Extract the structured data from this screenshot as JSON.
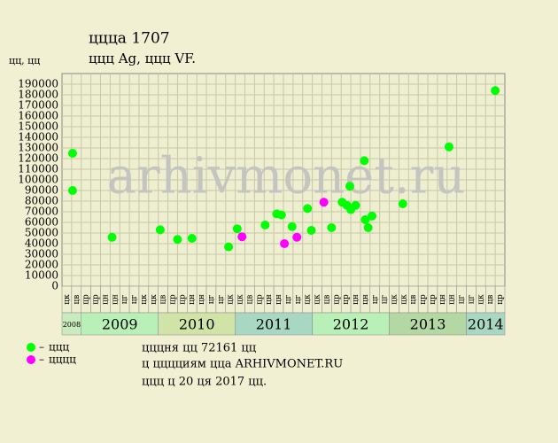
{
  "chart_data": {
    "type": "scatter",
    "title": "ццца 1707",
    "subtitle": "ццц Ag, ццц VF.",
    "y_label": "цц, цц",
    "watermark": "arhivmonet.ru",
    "notes": [
      "цццня цц 72161 цц",
      "ц цццциям цца ARHIVMONET.RU",
      "ццц ц 20 ця 2017 цц."
    ],
    "categories": [
      "цк",
      "цв",
      "цр",
      "цр",
      "цн",
      "цн",
      "цг",
      "цг",
      "цк",
      "цк",
      "цв",
      "цр",
      "цр",
      "цн",
      "цн",
      "цг",
      "цг",
      "цк",
      "цк",
      "цв",
      "цр",
      "цн",
      "цн",
      "цг",
      "цг",
      "цк",
      "цк",
      "цв",
      "цр",
      "цр",
      "цн",
      "цн",
      "цг",
      "цг",
      "цк",
      "цк",
      "цв",
      "цр",
      "цр",
      "цн",
      "цн",
      "цг",
      "цг",
      "цк",
      "цв",
      "цр"
    ],
    "year_bands": [
      {
        "label": "2008",
        "start": 0,
        "end": 2,
        "color": "#c8ecc0"
      },
      {
        "label": "2009",
        "start": 2,
        "end": 10,
        "color": "#b8f0b8"
      },
      {
        "label": "2010",
        "start": 10,
        "end": 18,
        "color": "#d0e4a8"
      },
      {
        "label": "2011",
        "start": 18,
        "end": 26,
        "color": "#a8d8c4"
      },
      {
        "label": "2012",
        "start": 26,
        "end": 34,
        "color": "#b8f0b8"
      },
      {
        "label": "2013",
        "start": 34,
        "end": 42,
        "color": "#b4d8a4"
      },
      {
        "label": "2014",
        "start": 42,
        "end": 46,
        "color": "#a8d8c4"
      }
    ],
    "xlim": [
      0,
      46
    ],
    "ylim": [
      0,
      200000
    ],
    "yticks": [
      0,
      10000,
      20000,
      30000,
      40000,
      50000,
      60000,
      70000,
      80000,
      90000,
      100000,
      110000,
      120000,
      130000,
      140000,
      150000,
      160000,
      170000,
      180000,
      190000
    ],
    "grid": true,
    "series": [
      {
        "name": "ццц",
        "color": "#00ff00",
        "x": [
          1.1,
          1.1,
          5.2,
          10.2,
          12.0,
          13.5,
          17.3,
          18.2,
          21.1,
          22.3,
          22.8,
          23.9,
          25.5,
          25.9,
          28.0,
          29.1,
          29.6,
          29.9,
          30.0,
          30.5,
          31.4,
          31.5,
          31.8,
          32.2,
          35.4,
          40.2,
          45.0
        ],
        "values": [
          125000,
          90000,
          46000,
          53000,
          44000,
          45000,
          37000,
          54000,
          57500,
          68000,
          67000,
          56000,
          73000,
          52500,
          55000,
          79000,
          76000,
          94000,
          72000,
          76000,
          118000,
          62500,
          55000,
          66000,
          77500,
          131000,
          184000
        ]
      },
      {
        "name": "цццц",
        "color": "#ff00ff",
        "x": [
          18.7,
          23.1,
          24.4,
          27.2
        ],
        "values": [
          46500,
          40000,
          46000,
          79000
        ]
      }
    ]
  }
}
